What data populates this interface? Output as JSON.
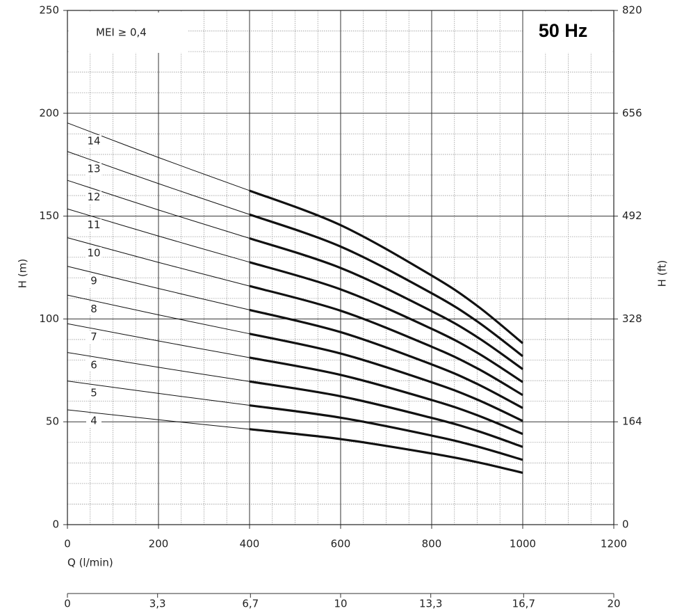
{
  "chart_data": {
    "type": "line",
    "annotations": [
      "MEI ≥ 0,4",
      "50 Hz"
    ],
    "ylabel": "H (m)",
    "y2label": "H (ft)",
    "xlabel": "Q (l/min)",
    "x": [
      0,
      200,
      400,
      600,
      800,
      900,
      1000
    ],
    "xlim": [
      0,
      1200
    ],
    "xticks": [
      0,
      200,
      400,
      600,
      800,
      1000,
      1200
    ],
    "ylim": [
      0,
      250
    ],
    "yticks": [
      0,
      50,
      100,
      150,
      200,
      250
    ],
    "y2lim": [
      0,
      820
    ],
    "y2ticks": [
      0,
      164,
      328,
      492,
      656,
      820
    ],
    "x2lim": [
      0,
      20
    ],
    "x2ticks": [
      0,
      {
        "value": 3.3,
        "label": "3,3"
      },
      {
        "value": 6.7,
        "label": "6,7"
      },
      10,
      {
        "value": 13.3,
        "label": "13,3"
      },
      {
        "value": 16.7,
        "label": "16,7"
      },
      20
    ],
    "thick_from_x": 400,
    "grid": true,
    "series": [
      {
        "name": "4",
        "color": "#111",
        "values": [
          55.8,
          51,
          46.4,
          41.6,
          34.6,
          30.4,
          25.2
        ]
      },
      {
        "name": "5",
        "color": "#111",
        "values": [
          69.8,
          63.8,
          58,
          52,
          43.3,
          38,
          31.5
        ]
      },
      {
        "name": "6",
        "color": "#111",
        "values": [
          83.7,
          76.5,
          69.6,
          62.4,
          51.9,
          45.6,
          37.8
        ]
      },
      {
        "name": "7",
        "color": "#111",
        "values": [
          97.7,
          89.3,
          81.2,
          72.8,
          60.6,
          53.2,
          44.1
        ]
      },
      {
        "name": "8",
        "color": "#111",
        "values": [
          111.6,
          102,
          92.8,
          83.2,
          69.2,
          60.8,
          50.4
        ]
      },
      {
        "name": "9",
        "color": "#111",
        "values": [
          125.6,
          114.8,
          104.4,
          93.6,
          77.9,
          68.4,
          56.7
        ]
      },
      {
        "name": "10",
        "color": "#111",
        "values": [
          139.5,
          127.5,
          116,
          104,
          86.5,
          76,
          63
        ]
      },
      {
        "name": "11",
        "color": "#111",
        "values": [
          153.5,
          140.3,
          127.6,
          114.4,
          95.2,
          83.6,
          69.3
        ]
      },
      {
        "name": "12",
        "color": "#111",
        "values": [
          167.4,
          153,
          139.2,
          124.8,
          103.8,
          91.2,
          75.6
        ]
      },
      {
        "name": "13",
        "color": "#111",
        "values": [
          181.4,
          165.8,
          150.8,
          135.2,
          112.5,
          98.8,
          81.9
        ]
      },
      {
        "name": "14",
        "color": "#111",
        "values": [
          195.3,
          178.5,
          162.4,
          145.6,
          121.1,
          106.4,
          88.2
        ]
      }
    ]
  }
}
